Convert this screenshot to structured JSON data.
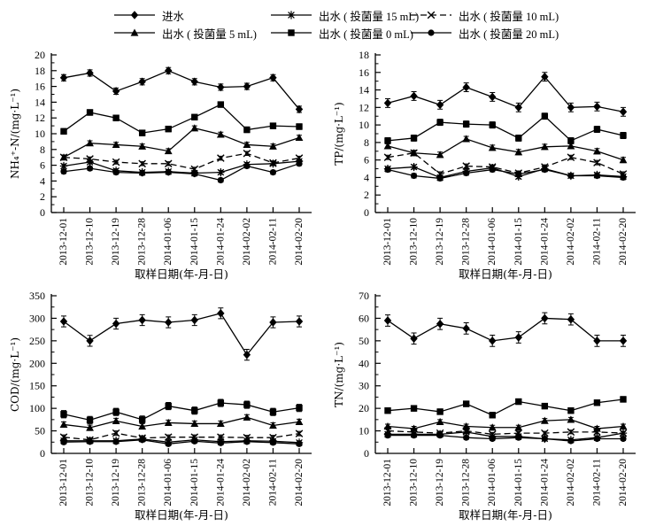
{
  "figure": {
    "background": "#ffffff",
    "ink_color": "#000000",
    "xaxis_title": "取样日期(年-月-日)"
  },
  "legend": {
    "items": [
      {
        "id": "influent",
        "label": "进水",
        "marker": "diamond",
        "dash": false
      },
      {
        "id": "out15",
        "label": "出水 ( 投菌量 15 mL)",
        "marker": "asterisk",
        "dash": false
      },
      {
        "id": "out10",
        "label": "出水 ( 投菌量 10 mL)",
        "marker": "xcross",
        "dash": true
      },
      {
        "id": "out5",
        "label": "出水 ( 投菌量 5 mL)",
        "marker": "triangle",
        "dash": false
      },
      {
        "id": "out0",
        "label": "出水 ( 投菌量 0 mL)",
        "marker": "square",
        "dash": false
      },
      {
        "id": "out20",
        "label": "出水 ( 投菌量 20 mL)",
        "marker": "circle",
        "dash": false
      }
    ]
  },
  "chart_data": {
    "type": "line",
    "grid": false,
    "legend_position": "top",
    "x_categories": [
      "2013-12-01",
      "2013-12-10",
      "2013-12-19",
      "2013-12-28",
      "2014-01-06",
      "2014-01-15",
      "2014-01-24",
      "2014-02-02",
      "2014-02-11",
      "2014-02-20"
    ],
    "charts": [
      {
        "name": "nh4n",
        "ylabel": "NH₄⁺-N/(mg·L⁻¹)",
        "xlabel": "取样日期(年-月-日)",
        "ylim": [
          0,
          20
        ],
        "ystep": 2,
        "series": [
          {
            "id": "influent",
            "name": "进水",
            "err": 0.4,
            "values": [
              17.1,
              17.7,
              15.4,
              16.6,
              18.0,
              16.6,
              15.9,
              16.0,
              17.1,
              13.1
            ]
          },
          {
            "id": "out0",
            "name": "出水 ( 投菌量 0 mL)",
            "err": 0.35,
            "values": [
              10.3,
              12.7,
              12.0,
              10.1,
              10.6,
              12.1,
              13.7,
              10.5,
              11.0,
              10.9
            ]
          },
          {
            "id": "out5",
            "name": "出水 ( 投菌量 5 mL)",
            "err": 0.3,
            "values": [
              7.0,
              8.8,
              8.6,
              8.4,
              7.8,
              10.7,
              9.9,
              8.6,
              8.4,
              9.5
            ]
          },
          {
            "id": "out10",
            "name": "出水 ( 投菌量 10 mL)",
            "err": 0.25,
            "values": [
              7.0,
              6.8,
              6.4,
              6.2,
              6.2,
              5.5,
              6.9,
              7.5,
              6.3,
              6.9
            ]
          },
          {
            "id": "out15",
            "name": "出水 ( 投菌量 15 mL)",
            "err": 0.25,
            "values": [
              5.9,
              6.4,
              5.3,
              5.1,
              5.2,
              5.0,
              5.1,
              6.1,
              6.2,
              6.5
            ]
          },
          {
            "id": "out20",
            "name": "出水 ( 投菌量 20 mL)",
            "err": 0.25,
            "values": [
              5.2,
              5.6,
              5.1,
              5.0,
              5.1,
              4.9,
              4.1,
              5.9,
              5.1,
              6.2
            ]
          }
        ]
      },
      {
        "name": "tp",
        "ylabel": "TP/(mg·L⁻¹)",
        "xlabel": "取样日期(年-月-日)",
        "ylim": [
          0,
          18
        ],
        "ystep": 2,
        "series": [
          {
            "id": "influent",
            "name": "进水",
            "err": 0.5,
            "values": [
              12.5,
              13.3,
              12.3,
              14.3,
              13.2,
              12.0,
              15.5,
              12.0,
              12.1,
              11.5
            ]
          },
          {
            "id": "out0",
            "name": "出水 ( 投菌量 0 mL)",
            "err": 0.35,
            "values": [
              8.2,
              8.5,
              10.3,
              10.1,
              10.0,
              8.5,
              11.0,
              8.2,
              9.5,
              8.8
            ]
          },
          {
            "id": "out5",
            "name": "出水 ( 投菌量 5 mL)",
            "err": 0.3,
            "values": [
              7.6,
              6.8,
              6.6,
              8.4,
              7.4,
              6.9,
              7.5,
              7.6,
              7.0,
              6.0
            ]
          },
          {
            "id": "out10",
            "name": "出水 ( 投菌量 10 mL)",
            "err": 0.25,
            "values": [
              6.3,
              6.8,
              4.4,
              5.3,
              5.2,
              4.5,
              5.2,
              6.3,
              5.7,
              4.4
            ]
          },
          {
            "id": "out15",
            "name": "出水 ( 投菌量 15 mL)",
            "err": 0.25,
            "values": [
              5.0,
              5.2,
              4.0,
              4.7,
              5.1,
              4.1,
              5.0,
              4.2,
              4.3,
              4.1
            ]
          },
          {
            "id": "out20",
            "name": "出水 ( 投菌量 20 mL)",
            "err": 0.25,
            "values": [
              4.9,
              4.2,
              3.9,
              4.5,
              4.9,
              4.4,
              4.9,
              4.2,
              4.2,
              4.0
            ]
          }
        ]
      },
      {
        "name": "cod",
        "ylabel": "COD/(mg·L⁻¹)",
        "xlabel": "取样日期(年-月-日)",
        "ylim": [
          0,
          350
        ],
        "ystep": 50,
        "series": [
          {
            "id": "influent",
            "name": "进水",
            "err": 12,
            "values": [
              293,
              250,
              288,
              296,
              291,
              296,
              311,
              219,
              291,
              293
            ]
          },
          {
            "id": "out0",
            "name": "出水 ( 投菌量 0 mL)",
            "err": 8,
            "values": [
              87,
              74,
              92,
              75,
              105,
              95,
              112,
              108,
              92,
              101
            ]
          },
          {
            "id": "out5",
            "name": "出水 ( 投菌量 5 mL)",
            "err": 6,
            "values": [
              64,
              57,
              72,
              60,
              68,
              66,
              66,
              80,
              62,
              70
            ]
          },
          {
            "id": "out10",
            "name": "出水 ( 投菌量 10 mL)",
            "err": 5,
            "values": [
              36,
              30,
              45,
              34,
              36,
              36,
              36,
              35,
              35,
              44
            ]
          },
          {
            "id": "out15",
            "name": "出水 ( 投菌量 15 mL)",
            "err": 4,
            "values": [
              28,
              28,
              28,
              32,
              25,
              30,
              26,
              28,
              27,
              24
            ]
          },
          {
            "id": "out20",
            "name": "出水 ( 投菌量 20 mL)",
            "err": 4,
            "values": [
              25,
              26,
              26,
              30,
              21,
              27,
              23,
              26,
              24,
              21
            ]
          }
        ]
      },
      {
        "name": "tn",
        "ylabel": "TN/(mg·L⁻¹)",
        "xlabel": "取样日期(年-月-日)",
        "ylim": [
          0,
          70
        ],
        "ystep": 10,
        "series": [
          {
            "id": "influent",
            "name": "进水",
            "err": 2.5,
            "values": [
              59,
              51,
              57.5,
              55.5,
              50,
              51.5,
              60,
              59.5,
              50,
              50
            ]
          },
          {
            "id": "out0",
            "name": "出水 ( 投菌量 0 mL)",
            "err": 1.2,
            "values": [
              19,
              20,
              18.5,
              22,
              17,
              23,
              21,
              19,
              22.5,
              24
            ]
          },
          {
            "id": "out5",
            "name": "出水 ( 投菌量 5 mL)",
            "err": 1.0,
            "values": [
              12,
              11,
              14,
              12,
              11.5,
              11.5,
              14.5,
              15,
              11,
              12
            ]
          },
          {
            "id": "out10",
            "name": "出水 ( 投菌量 10 mL)",
            "err": 0.8,
            "values": [
              10,
              9.5,
              9,
              10,
              8.5,
              9,
              9,
              9.5,
              9.5,
              9
            ]
          },
          {
            "id": "out15",
            "name": "出水 ( 投菌量 15 mL)",
            "err": 0.8,
            "values": [
              8.5,
              8.5,
              8.5,
              9.5,
              7.5,
              7.5,
              6.5,
              6,
              7,
              9
            ]
          },
          {
            "id": "out20",
            "name": "出水 ( 投菌量 20 mL)",
            "err": 0.8,
            "values": [
              8,
              8,
              8,
              7,
              6.5,
              7,
              6.5,
              5.5,
              6.5,
              6.5
            ]
          }
        ]
      }
    ]
  }
}
